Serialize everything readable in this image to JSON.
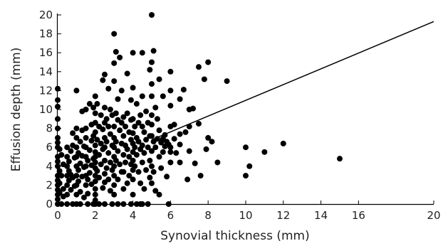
{
  "chart_data": {
    "type": "scatter",
    "xlabel": "Synovial thickness (mm)",
    "ylabel": "Effusion depth (mm)",
    "xlim": [
      0,
      20
    ],
    "ylim": [
      0,
      20
    ],
    "xticks": [
      "0",
      "2",
      "4",
      "6",
      "8",
      "10",
      "12",
      "14",
      "16",
      "20"
    ],
    "xtick_values": [
      0,
      2,
      4,
      6,
      8,
      10,
      12,
      14,
      16,
      20
    ],
    "yticks": [
      "0",
      "2",
      "4",
      "6",
      "8",
      "10",
      "12",
      "14",
      "16",
      "18",
      "20"
    ],
    "ytick_values": [
      0,
      2,
      4,
      6,
      8,
      10,
      12,
      14,
      16,
      18,
      20
    ],
    "grid": false,
    "marker_color": "#000000",
    "regression_line": {
      "x": [
        5,
        20
      ],
      "y": [
        6.8,
        19.3
      ]
    },
    "series": [
      {
        "points": [
          [
            0,
            12.2
          ],
          [
            0,
            11
          ],
          [
            0,
            10.3
          ],
          [
            0,
            9
          ],
          [
            0,
            8
          ],
          [
            0,
            7
          ],
          [
            0,
            6.5
          ],
          [
            0,
            6
          ],
          [
            0,
            5
          ],
          [
            0,
            4.5
          ],
          [
            0,
            4
          ],
          [
            0,
            3
          ],
          [
            0,
            2.5
          ],
          [
            0,
            2
          ],
          [
            0,
            1.5
          ],
          [
            0,
            1
          ],
          [
            0,
            0.5
          ],
          [
            0,
            0
          ],
          [
            0.1,
            5.8
          ],
          [
            0.1,
            3.5
          ],
          [
            0.1,
            2.2
          ],
          [
            0.1,
            1.2
          ],
          [
            0.2,
            0
          ],
          [
            0.2,
            3
          ],
          [
            0.2,
            5.2
          ],
          [
            0.3,
            1.6
          ],
          [
            0.3,
            4.2
          ],
          [
            0.3,
            0.8
          ],
          [
            0.5,
            0
          ],
          [
            0.5,
            1
          ],
          [
            0.5,
            2
          ],
          [
            0.5,
            3
          ],
          [
            0.5,
            4
          ],
          [
            0.5,
            5
          ],
          [
            0.5,
            6
          ],
          [
            0.6,
            2.5
          ],
          [
            0.6,
            3.5
          ],
          [
            0.6,
            4.5
          ],
          [
            0.7,
            1.5
          ],
          [
            0.7,
            3.1
          ],
          [
            0.7,
            5.6
          ],
          [
            0.8,
            0
          ],
          [
            0.8,
            2.8
          ],
          [
            0.8,
            6.2
          ],
          [
            0.8,
            7.5
          ],
          [
            0.9,
            1.9
          ],
          [
            0.9,
            4.9
          ],
          [
            1,
            12
          ],
          [
            1,
            8
          ],
          [
            1,
            7
          ],
          [
            1,
            6
          ],
          [
            1,
            5
          ],
          [
            1,
            4
          ],
          [
            1,
            3
          ],
          [
            1,
            2
          ],
          [
            1,
            1
          ],
          [
            1,
            0
          ],
          [
            1.1,
            3.6
          ],
          [
            1.1,
            5.4
          ],
          [
            1.1,
            2.4
          ],
          [
            1.2,
            4.3
          ],
          [
            1.2,
            6.6
          ],
          [
            1.2,
            1.3
          ],
          [
            1.2,
            0
          ],
          [
            1.3,
            2.9
          ],
          [
            1.3,
            5.1
          ],
          [
            1.3,
            7.8
          ],
          [
            1.3,
            9.8
          ],
          [
            1.4,
            3.9
          ],
          [
            1.4,
            0.7
          ],
          [
            1.4,
            6.1
          ],
          [
            1.5,
            10
          ],
          [
            1.5,
            8
          ],
          [
            1.5,
            7
          ],
          [
            1.5,
            6
          ],
          [
            1.5,
            5
          ],
          [
            1.5,
            4
          ],
          [
            1.5,
            3
          ],
          [
            1.5,
            2
          ],
          [
            1.6,
            4.6
          ],
          [
            1.6,
            2.6
          ],
          [
            1.6,
            1.1
          ],
          [
            1.6,
            0
          ],
          [
            1.7,
            10.6
          ],
          [
            1.7,
            5.7
          ],
          [
            1.7,
            3.3
          ],
          [
            1.8,
            8.4
          ],
          [
            1.8,
            6.7
          ],
          [
            1.8,
            4.1
          ],
          [
            1.8,
            2.1
          ],
          [
            1.9,
            10.2
          ],
          [
            1.9,
            7.2
          ],
          [
            1.9,
            4.8
          ],
          [
            1.9,
            0
          ],
          [
            2,
            11.4
          ],
          [
            2,
            9.6
          ],
          [
            2,
            8.6
          ],
          [
            2,
            7.6
          ],
          [
            2,
            6.2
          ],
          [
            2,
            5.5
          ],
          [
            2,
            5
          ],
          [
            2,
            4.4
          ],
          [
            2,
            3.8
          ],
          [
            2,
            3
          ],
          [
            2,
            2.4
          ],
          [
            2,
            1.6
          ],
          [
            2,
            1
          ],
          [
            2,
            0.4
          ],
          [
            2,
            0
          ],
          [
            2.1,
            10.6
          ],
          [
            2.1,
            6.8
          ],
          [
            2.1,
            3.5
          ],
          [
            2.2,
            8.2
          ],
          [
            2.2,
            5.2
          ],
          [
            2.2,
            2.8
          ],
          [
            2.2,
            0
          ],
          [
            2.3,
            9.4
          ],
          [
            2.3,
            6.4
          ],
          [
            2.3,
            4.2
          ],
          [
            2.4,
            13.1
          ],
          [
            2.4,
            7.9
          ],
          [
            2.4,
            5.8
          ],
          [
            2.4,
            1.7
          ],
          [
            2.5,
            13.7
          ],
          [
            2.5,
            10.2
          ],
          [
            2.5,
            8.6
          ],
          [
            2.5,
            7
          ],
          [
            2.5,
            6
          ],
          [
            2.5,
            4.6
          ],
          [
            2.5,
            3.2
          ],
          [
            2.5,
            2.3
          ],
          [
            2.5,
            0
          ],
          [
            2.6,
            9
          ],
          [
            2.6,
            6.6
          ],
          [
            2.6,
            3.8
          ],
          [
            2.7,
            12.2
          ],
          [
            2.7,
            8.2
          ],
          [
            2.7,
            5.4
          ],
          [
            2.7,
            2.6
          ],
          [
            2.8,
            10
          ],
          [
            2.8,
            7.4
          ],
          [
            2.8,
            4.4
          ],
          [
            2.8,
            1.4
          ],
          [
            2.9,
            9.4
          ],
          [
            2.9,
            6.2
          ],
          [
            2.9,
            3.6
          ],
          [
            2.9,
            0
          ],
          [
            3,
            18
          ],
          [
            3,
            14.9
          ],
          [
            3,
            13
          ],
          [
            3,
            8.2
          ],
          [
            3,
            7
          ],
          [
            3,
            6
          ],
          [
            3,
            5
          ],
          [
            3,
            4
          ],
          [
            3,
            3
          ],
          [
            3,
            2
          ],
          [
            3,
            1
          ],
          [
            3.1,
            16.1
          ],
          [
            3.1,
            9.6
          ],
          [
            3.1,
            6.6
          ],
          [
            3.1,
            4.6
          ],
          [
            3.2,
            11.1
          ],
          [
            3.2,
            8.9
          ],
          [
            3.2,
            5.6
          ],
          [
            3.2,
            2.6
          ],
          [
            3.2,
            0
          ],
          [
            3.3,
            15.5
          ],
          [
            3.3,
            7.8
          ],
          [
            3.3,
            4.2
          ],
          [
            3.4,
            12
          ],
          [
            3.4,
            8.6
          ],
          [
            3.4,
            6.4
          ],
          [
            3.4,
            3.4
          ],
          [
            3.5,
            9.2
          ],
          [
            3.5,
            7.2
          ],
          [
            3.5,
            5.2
          ],
          [
            3.5,
            3.4
          ],
          [
            3.5,
            1.6
          ],
          [
            3.5,
            0
          ],
          [
            3.6,
            8.2
          ],
          [
            3.6,
            6.2
          ],
          [
            3.6,
            4.4
          ],
          [
            3.7,
            13.8
          ],
          [
            3.7,
            9.6
          ],
          [
            3.7,
            5.8
          ],
          [
            3.7,
            2.2
          ],
          [
            3.8,
            7.6
          ],
          [
            3.8,
            5
          ],
          [
            3.8,
            3
          ],
          [
            3.9,
            11
          ],
          [
            3.9,
            8.9
          ],
          [
            3.9,
            6.8
          ],
          [
            3.9,
            4.2
          ],
          [
            3.9,
            0
          ],
          [
            4,
            16
          ],
          [
            4,
            12.3
          ],
          [
            4,
            9
          ],
          [
            4,
            7.5
          ],
          [
            4,
            6.4
          ],
          [
            4,
            5.5
          ],
          [
            4,
            4.6
          ],
          [
            4,
            3.6
          ],
          [
            4,
            2.6
          ],
          [
            4,
            1
          ],
          [
            4.1,
            8.2
          ],
          [
            4.1,
            6
          ],
          [
            4.1,
            4
          ],
          [
            4.2,
            10.6
          ],
          [
            4.2,
            7
          ],
          [
            4.2,
            5.2
          ],
          [
            4.2,
            0
          ],
          [
            4.3,
            8.6
          ],
          [
            4.3,
            6.6
          ],
          [
            4.3,
            3.4
          ],
          [
            4.4,
            9.4
          ],
          [
            4.4,
            5.8
          ],
          [
            4.4,
            2.2
          ],
          [
            4.4,
            0
          ],
          [
            4.5,
            16
          ],
          [
            4.5,
            11.4
          ],
          [
            4.5,
            8.2
          ],
          [
            4.5,
            6.2
          ],
          [
            4.5,
            4.4
          ],
          [
            4.5,
            0
          ],
          [
            4.6,
            7.6
          ],
          [
            4.6,
            5.4
          ],
          [
            4.6,
            1.6
          ],
          [
            4.7,
            9.8
          ],
          [
            4.7,
            6.8
          ],
          [
            4.7,
            3.6
          ],
          [
            4.8,
            8.6
          ],
          [
            4.8,
            6
          ],
          [
            4.8,
            0
          ],
          [
            4.9,
            14.2
          ],
          [
            4.9,
            7.2
          ],
          [
            4.9,
            4.6
          ],
          [
            4.9,
            2.8
          ],
          [
            5,
            20
          ],
          [
            5,
            15
          ],
          [
            5,
            12.7
          ],
          [
            5,
            11.4
          ],
          [
            5,
            9.4
          ],
          [
            5,
            8.4
          ],
          [
            5,
            7.2
          ],
          [
            5,
            5.6
          ],
          [
            5,
            4
          ],
          [
            5,
            2.2
          ],
          [
            5.1,
            16.2
          ],
          [
            5.1,
            6.6
          ],
          [
            5.1,
            3.4
          ],
          [
            5.2,
            10.2
          ],
          [
            5.2,
            6
          ],
          [
            5.2,
            1.4
          ],
          [
            5.3,
            9
          ],
          [
            5.3,
            6.9
          ],
          [
            5.4,
            13.2
          ],
          [
            5.4,
            7.8
          ],
          [
            5.4,
            5
          ],
          [
            5.4,
            1
          ],
          [
            5.5,
            6.5
          ],
          [
            5.5,
            3.8
          ],
          [
            5.6,
            11.4
          ],
          [
            5.6,
            6.9
          ],
          [
            5.6,
            5.5
          ],
          [
            5.7,
            7.3
          ],
          [
            5.7,
            6.1
          ],
          [
            5.8,
            6.6
          ],
          [
            5.8,
            2.9
          ],
          [
            5.9,
            6.3
          ],
          [
            5.9,
            0
          ],
          [
            6,
            14
          ],
          [
            6,
            12
          ],
          [
            6,
            10.4
          ],
          [
            6,
            8.2
          ],
          [
            6,
            6
          ],
          [
            6,
            5.5
          ],
          [
            6,
            4.4
          ],
          [
            6.2,
            8.4
          ],
          [
            6.2,
            6.9
          ],
          [
            6.3,
            5.4
          ],
          [
            6.5,
            11.1
          ],
          [
            6.5,
            7.4
          ],
          [
            6.5,
            6.3
          ],
          [
            6.5,
            4.4
          ],
          [
            6.7,
            12.1
          ],
          [
            6.8,
            7.6
          ],
          [
            6.9,
            2.6
          ],
          [
            7,
            10
          ],
          [
            7,
            5.6
          ],
          [
            7,
            8.2
          ],
          [
            7.2,
            10.1
          ],
          [
            7.3,
            4.3
          ],
          [
            7.5,
            14.5
          ],
          [
            7.5,
            8.5
          ],
          [
            7.6,
            3
          ],
          [
            7.8,
            13.2
          ],
          [
            7.9,
            5.8
          ],
          [
            8,
            15
          ],
          [
            8,
            7
          ],
          [
            8.2,
            6.6
          ],
          [
            8.5,
            4.4
          ],
          [
            9,
            13
          ],
          [
            10,
            6
          ],
          [
            10,
            3
          ],
          [
            10.2,
            4
          ],
          [
            11,
            5.5
          ],
          [
            12,
            6.4
          ],
          [
            15,
            4.8
          ]
        ]
      }
    ]
  }
}
